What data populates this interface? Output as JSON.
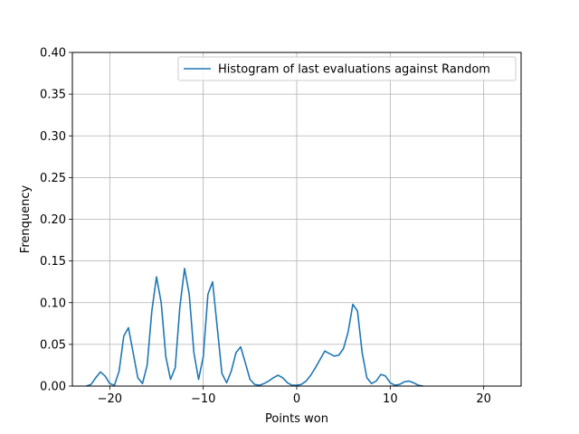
{
  "chart_data": {
    "type": "line",
    "title": "",
    "xlabel": "Points won",
    "ylabel": "Frenquency",
    "xlim": [
      -24,
      24
    ],
    "ylim": [
      0,
      0.4
    ],
    "xticks": [
      -20,
      -10,
      0,
      10,
      20
    ],
    "xtick_labels": [
      "−20",
      "−10",
      "0",
      "10",
      "20"
    ],
    "yticks": [
      0.0,
      0.05,
      0.1,
      0.15,
      0.2,
      0.25,
      0.3,
      0.35,
      0.4
    ],
    "ytick_labels": [
      "0.00",
      "0.05",
      "0.10",
      "0.15",
      "0.20",
      "0.25",
      "0.30",
      "0.35",
      "0.40"
    ],
    "grid": true,
    "legend_position": "top-right",
    "series": [
      {
        "name": "Histogram of last evaluations against Random",
        "color": "#1f77b4",
        "x": [
          -22.5,
          -22,
          -21.5,
          -21,
          -20.5,
          -20,
          -19.5,
          -19,
          -18.5,
          -18,
          -17.5,
          -17,
          -16.5,
          -16,
          -15.5,
          -15,
          -14.5,
          -14,
          -13.5,
          -13,
          -12.5,
          -12,
          -11.5,
          -11,
          -10.5,
          -10,
          -9.5,
          -9,
          -8.5,
          -8,
          -7.5,
          -7,
          -6.5,
          -6,
          -5.5,
          -5,
          -4.5,
          -4,
          -3.5,
          -3,
          -2.5,
          -2,
          -1.5,
          -1,
          -0.5,
          0,
          0.5,
          1,
          1.5,
          2,
          2.5,
          3,
          3.5,
          4,
          4.5,
          5,
          5.5,
          6,
          6.5,
          7,
          7.5,
          8,
          8.5,
          9,
          9.5,
          10,
          10.5,
          11,
          11.5,
          12,
          12.5,
          13,
          13.5
        ],
        "y": [
          0,
          0.002,
          0.01,
          0.017,
          0.012,
          0.003,
          0.001,
          0.018,
          0.06,
          0.07,
          0.04,
          0.01,
          0.003,
          0.025,
          0.09,
          0.131,
          0.1,
          0.035,
          0.008,
          0.022,
          0.095,
          0.141,
          0.11,
          0.04,
          0.008,
          0.035,
          0.11,
          0.125,
          0.07,
          0.015,
          0.004,
          0.018,
          0.04,
          0.047,
          0.028,
          0.008,
          0.002,
          0.001,
          0.003,
          0.006,
          0.01,
          0.013,
          0.01,
          0.004,
          0.001,
          0.001,
          0.002,
          0.006,
          0.013,
          0.022,
          0.032,
          0.042,
          0.039,
          0.036,
          0.037,
          0.045,
          0.065,
          0.098,
          0.09,
          0.04,
          0.01,
          0.003,
          0.006,
          0.014,
          0.012,
          0.004,
          0.001,
          0.002,
          0.005,
          0.006,
          0.004,
          0.001,
          0
        ]
      }
    ]
  }
}
